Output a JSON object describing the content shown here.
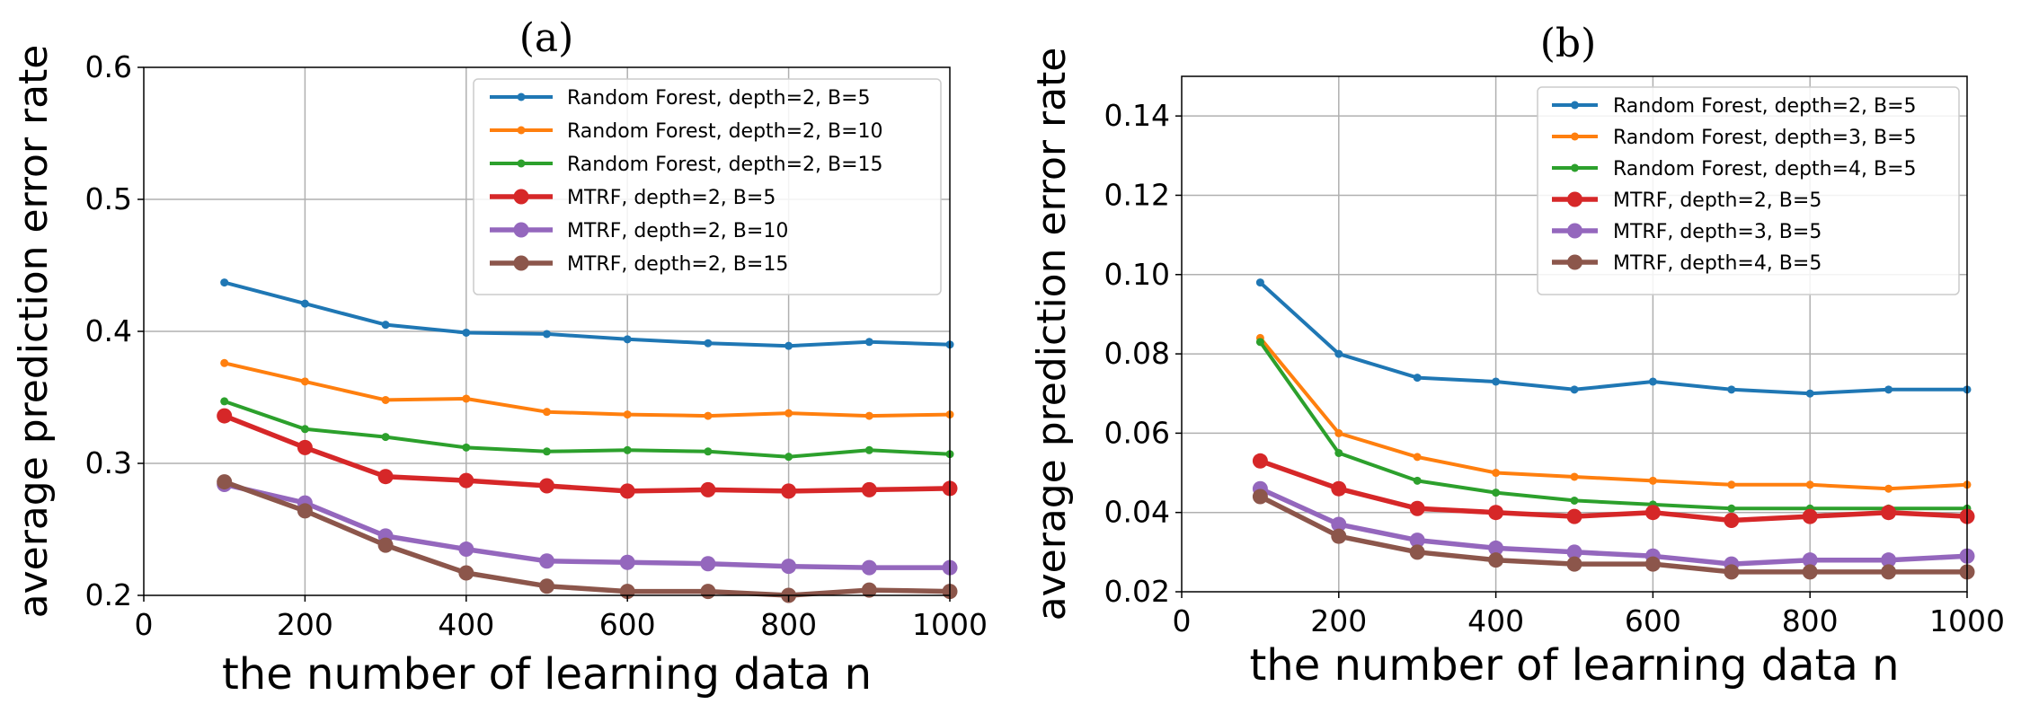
{
  "chart_data": [
    {
      "type": "line",
      "panel_label": "(a)",
      "xlabel": "the number of learning data n",
      "ylabel": "average prediction error rate",
      "xlim": [
        0,
        1000
      ],
      "ylim": [
        0.2,
        0.6
      ],
      "xticks": [
        0,
        200,
        400,
        600,
        800,
        1000
      ],
      "xtick_labels": [
        "0",
        "200",
        "400",
        "600",
        "800",
        "1000"
      ],
      "yticks": [
        0.2,
        0.3,
        0.4,
        0.5,
        0.6
      ],
      "ytick_labels": [
        "0.2",
        "0.3",
        "0.4",
        "0.5",
        "0.6"
      ],
      "grid": true,
      "legend_position": "top-right",
      "x": [
        100,
        200,
        300,
        400,
        500,
        600,
        700,
        800,
        900,
        1000
      ],
      "series": [
        {
          "name": "Random Forest, depth=2, B=5",
          "color": "#1f77b4",
          "marker": "small",
          "values": [
            0.437,
            0.421,
            0.405,
            0.399,
            0.398,
            0.394,
            0.391,
            0.389,
            0.392,
            0.39
          ]
        },
        {
          "name": "Random Forest, depth=2, B=10",
          "color": "#ff7f0e",
          "marker": "small",
          "values": [
            0.376,
            0.362,
            0.348,
            0.349,
            0.339,
            0.337,
            0.336,
            0.338,
            0.336,
            0.337
          ]
        },
        {
          "name": "Random Forest, depth=2, B=15",
          "color": "#2ca02c",
          "marker": "small",
          "values": [
            0.347,
            0.326,
            0.32,
            0.312,
            0.309,
            0.31,
            0.309,
            0.305,
            0.31,
            0.307
          ]
        },
        {
          "name": "MTRF, depth=2, B=5",
          "color": "#d62728",
          "marker": "large",
          "values": [
            0.336,
            0.312,
            0.29,
            0.287,
            0.283,
            0.279,
            0.28,
            0.279,
            0.28,
            0.281
          ]
        },
        {
          "name": "MTRF, depth=2, B=10",
          "color": "#9467bd",
          "marker": "large",
          "values": [
            0.284,
            0.27,
            0.245,
            0.235,
            0.226,
            0.225,
            0.224,
            0.222,
            0.221,
            0.221
          ]
        },
        {
          "name": "MTRF, depth=2, B=15",
          "color": "#8c564b",
          "marker": "large",
          "values": [
            0.286,
            0.264,
            0.238,
            0.217,
            0.207,
            0.203,
            0.203,
            0.2,
            0.204,
            0.203
          ]
        }
      ]
    },
    {
      "type": "line",
      "panel_label": "(b)",
      "xlabel": "the number of learning data n",
      "ylabel": "average prediction error rate",
      "xlim": [
        0,
        1000
      ],
      "ylim": [
        0.02,
        0.15
      ],
      "xticks": [
        0,
        200,
        400,
        600,
        800,
        1000
      ],
      "xtick_labels": [
        "0",
        "200",
        "400",
        "600",
        "800",
        "1000"
      ],
      "yticks": [
        0.02,
        0.04,
        0.06,
        0.08,
        0.1,
        0.12,
        0.14
      ],
      "ytick_labels": [
        "0.02",
        "0.04",
        "0.06",
        "0.08",
        "0.10",
        "0.12",
        "0.14"
      ],
      "grid": true,
      "legend_position": "top-right",
      "x": [
        100,
        200,
        300,
        400,
        500,
        600,
        700,
        800,
        900,
        1000
      ],
      "series": [
        {
          "name": "Random Forest, depth=2, B=5",
          "color": "#1f77b4",
          "marker": "small",
          "values": [
            0.098,
            0.08,
            0.074,
            0.073,
            0.071,
            0.073,
            0.071,
            0.07,
            0.071,
            0.071
          ]
        },
        {
          "name": "Random Forest, depth=3, B=5",
          "color": "#ff7f0e",
          "marker": "small",
          "values": [
            0.084,
            0.06,
            0.054,
            0.05,
            0.049,
            0.048,
            0.047,
            0.047,
            0.046,
            0.047
          ]
        },
        {
          "name": "Random Forest, depth=4, B=5",
          "color": "#2ca02c",
          "marker": "small",
          "values": [
            0.083,
            0.055,
            0.048,
            0.045,
            0.043,
            0.042,
            0.041,
            0.041,
            0.041,
            0.041
          ]
        },
        {
          "name": "MTRF, depth=2, B=5",
          "color": "#d62728",
          "marker": "large",
          "values": [
            0.053,
            0.046,
            0.041,
            0.04,
            0.039,
            0.04,
            0.038,
            0.039,
            0.04,
            0.039
          ]
        },
        {
          "name": "MTRF, depth=3, B=5",
          "color": "#9467bd",
          "marker": "large",
          "values": [
            0.046,
            0.037,
            0.033,
            0.031,
            0.03,
            0.029,
            0.027,
            0.028,
            0.028,
            0.029
          ]
        },
        {
          "name": "MTRF, depth=4, B=5",
          "color": "#8c564b",
          "marker": "large",
          "values": [
            0.044,
            0.034,
            0.03,
            0.028,
            0.027,
            0.027,
            0.025,
            0.025,
            0.025,
            0.025
          ]
        }
      ]
    }
  ]
}
